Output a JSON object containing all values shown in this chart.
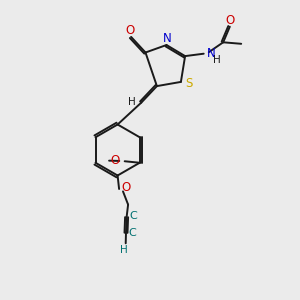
{
  "bg_color": "#ebebeb",
  "bond_color": "#1a1a1a",
  "sulfur_color": "#ccaa00",
  "nitrogen_color": "#0000cc",
  "oxygen_color": "#cc0000",
  "teal_color": "#007070",
  "xlim": [
    0,
    10
  ],
  "ylim": [
    0,
    10
  ]
}
